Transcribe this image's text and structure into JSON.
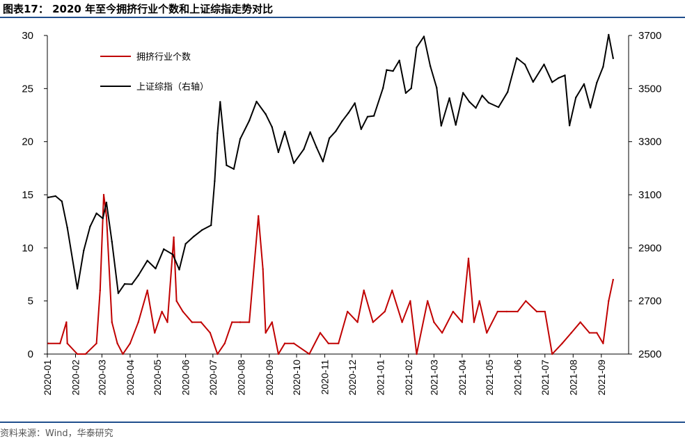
{
  "title": "图表17： 2020 年至今拥挤行业个数和上证综指走势对比",
  "source": "资料来源：Wind，华泰研究",
  "chart_data": {
    "type": "line",
    "x_ticks": [
      "2020-01",
      "2020-02",
      "2020-03",
      "2020-04",
      "2020-05",
      "2020-06",
      "2020-07",
      "2020-08",
      "2020-09",
      "2020-10",
      "2020-11",
      "2020-12",
      "2021-01",
      "2021-02",
      "2021-03",
      "2021-04",
      "2021-05",
      "2021-06",
      "2021-07",
      "2021-08",
      "2021-09"
    ],
    "y_left": {
      "range": [
        0,
        30
      ],
      "ticks": [
        "0",
        "5",
        "10",
        "15",
        "20",
        "25",
        "30"
      ]
    },
    "y_right": {
      "range": [
        2500,
        3700
      ],
      "ticks": [
        "2500",
        "2700",
        "2900",
        "3100",
        "3300",
        "3500",
        "3700"
      ]
    },
    "grid": false,
    "legend_position": "top-left",
    "series": [
      {
        "name": "拥挤行业个数",
        "axis": "left",
        "color": "#c00000",
        "x": [
          "2020-01-02",
          "2020-01-15",
          "2020-01-22",
          "2020-01-23",
          "2020-02-03",
          "2020-02-12",
          "2020-02-24",
          "2020-02-28",
          "2020-03-03",
          "2020-03-06",
          "2020-03-12",
          "2020-03-18",
          "2020-03-24",
          "2020-04-01",
          "2020-04-10",
          "2020-04-20",
          "2020-04-28",
          "2020-05-06",
          "2020-05-12",
          "2020-05-19",
          "2020-05-22",
          "2020-05-29",
          "2020-06-08",
          "2020-06-18",
          "2020-06-28",
          "2020-07-06",
          "2020-07-14",
          "2020-07-22",
          "2020-07-31",
          "2020-08-10",
          "2020-08-20",
          "2020-08-25",
          "2020-08-28",
          "2020-09-04",
          "2020-09-11",
          "2020-09-18",
          "2020-09-28",
          "2020-10-15",
          "2020-10-27",
          "2020-11-05",
          "2020-11-16",
          "2020-11-26",
          "2020-12-07",
          "2020-12-14",
          "2020-12-24",
          "2021-01-06",
          "2021-01-14",
          "2021-01-25",
          "2021-02-03",
          "2021-02-10",
          "2021-02-22",
          "2021-03-01",
          "2021-03-10",
          "2021-03-22",
          "2021-04-01",
          "2021-04-08",
          "2021-04-14",
          "2021-04-20",
          "2021-04-28",
          "2021-05-10",
          "2021-05-20",
          "2021-06-01",
          "2021-06-10",
          "2021-06-22",
          "2021-07-01",
          "2021-07-09",
          "2021-07-20",
          "2021-07-30",
          "2021-08-09",
          "2021-08-19",
          "2021-08-27",
          "2021-09-03",
          "2021-09-09",
          "2021-09-14"
        ],
        "values": [
          1,
          1,
          3,
          1,
          0,
          0,
          1,
          6,
          15,
          13,
          3,
          1,
          0,
          1,
          3,
          6,
          2,
          4,
          3,
          11,
          5,
          4,
          3,
          3,
          2,
          0,
          1,
          3,
          3,
          3,
          13,
          8,
          2,
          3,
          0,
          1,
          1,
          0,
          2,
          1,
          1,
          4,
          3,
          6,
          3,
          4,
          6,
          3,
          5,
          0,
          5,
          3,
          2,
          4,
          3,
          9,
          3,
          5,
          2,
          4,
          4,
          4,
          5,
          4,
          4,
          0,
          1,
          2,
          3,
          2,
          2,
          1,
          5,
          7
        ]
      },
      {
        "name": "上证综指（右轴）",
        "axis": "right",
        "color": "#000000",
        "x": [
          "2020-01-02",
          "2020-01-10",
          "2020-01-17",
          "2020-01-23",
          "2020-02-03",
          "2020-02-10",
          "2020-02-17",
          "2020-02-24",
          "2020-03-02",
          "2020-03-06",
          "2020-03-12",
          "2020-03-19",
          "2020-03-26",
          "2020-04-03",
          "2020-04-10",
          "2020-04-20",
          "2020-04-29",
          "2020-05-08",
          "2020-05-18",
          "2020-05-25",
          "2020-06-01",
          "2020-06-10",
          "2020-06-19",
          "2020-06-29",
          "2020-07-03",
          "2020-07-06",
          "2020-07-09",
          "2020-07-16",
          "2020-07-24",
          "2020-07-31",
          "2020-08-10",
          "2020-08-18",
          "2020-08-28",
          "2020-09-04",
          "2020-09-11",
          "2020-09-18",
          "2020-09-28",
          "2020-10-09",
          "2020-10-16",
          "2020-10-23",
          "2020-10-30",
          "2020-11-06",
          "2020-11-13",
          "2020-11-20",
          "2020-11-27",
          "2020-12-04",
          "2020-12-11",
          "2020-12-18",
          "2020-12-25",
          "2021-01-04",
          "2021-01-08",
          "2021-01-15",
          "2021-01-22",
          "2021-01-29",
          "2021-02-04",
          "2021-02-10",
          "2021-02-18",
          "2021-02-25",
          "2021-03-04",
          "2021-03-09",
          "2021-03-18",
          "2021-03-25",
          "2021-04-02",
          "2021-04-09",
          "2021-04-16",
          "2021-04-23",
          "2021-04-30",
          "2021-05-11",
          "2021-05-21",
          "2021-05-31",
          "2021-06-09",
          "2021-06-18",
          "2021-06-30",
          "2021-07-09",
          "2021-07-16",
          "2021-07-23",
          "2021-07-28",
          "2021-08-04",
          "2021-08-13",
          "2021-08-20",
          "2021-08-27",
          "2021-09-03",
          "2021-09-09",
          "2021-09-14"
        ],
        "values": [
          3090,
          3095,
          3075,
          2976,
          2746,
          2890,
          2980,
          3030,
          3011,
          3071,
          2923,
          2729,
          2764,
          2763,
          2796,
          2852,
          2822,
          2895,
          2875,
          2818,
          2915,
          2943,
          2967,
          2985,
          3152,
          3332,
          3450,
          3211,
          3197,
          3310,
          3379,
          3451,
          3404,
          3355,
          3260,
          3338,
          3219,
          3272,
          3336,
          3278,
          3225,
          3313,
          3339,
          3377,
          3408,
          3445,
          3347,
          3394,
          3397,
          3502,
          3570,
          3566,
          3606,
          3483,
          3501,
          3655,
          3696,
          3585,
          3503,
          3360,
          3464,
          3363,
          3484,
          3450,
          3427,
          3474,
          3447,
          3430,
          3487,
          3615,
          3591,
          3525,
          3591,
          3524,
          3540,
          3550,
          3361,
          3466,
          3517,
          3428,
          3522,
          3582,
          3703,
          3614
        ]
      }
    ]
  }
}
